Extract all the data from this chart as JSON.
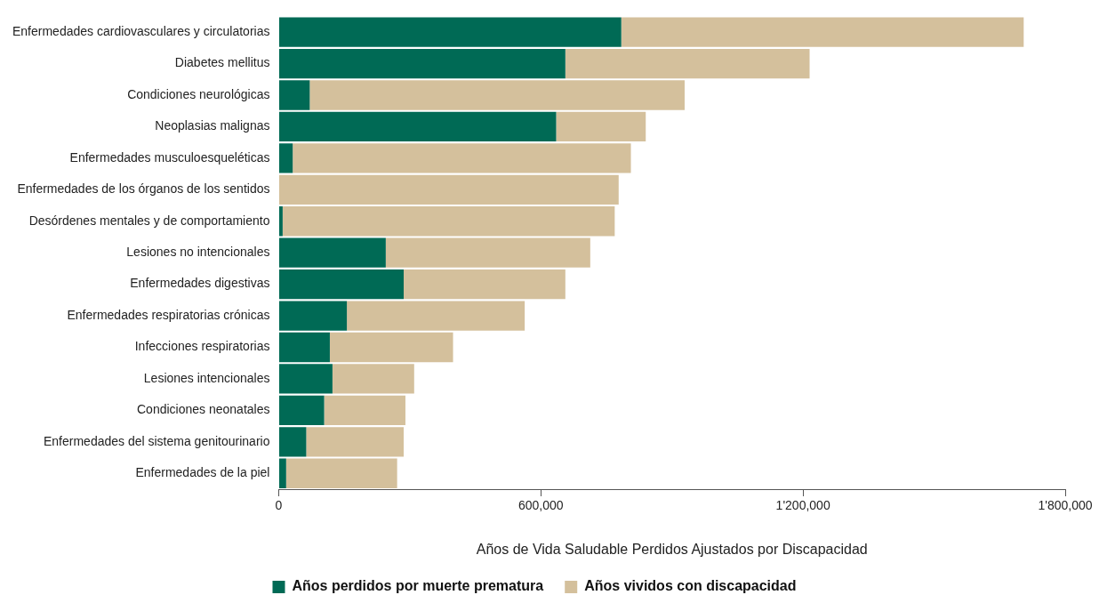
{
  "chart_data": {
    "type": "bar",
    "orientation": "horizontal",
    "stacked": true,
    "xlabel": "Años de Vida Saludable Perdidos Ajustados por Discapacidad",
    "categories": [
      "Enfermedades cardiovasculares y circulatorias",
      "Diabetes mellitus",
      "Condiciones neurológicas",
      "Neoplasias malignas",
      "Enfermedades musculoesqueléticas",
      "Enfermedades de los órganos de los sentidos",
      "Desórdenes mentales y de comportamiento",
      "Lesiones no intencionales",
      "Enfermedades digestivas",
      "Enfermedades respiratorias crónicas",
      "Infecciones respiratorias",
      "Lesiones intencionales",
      "Condiciones neonatales",
      "Enfermedades del sistema genitourinario",
      "Enfermedades de la piel"
    ],
    "series": [
      {
        "name": "Años perdidos por muerte prematura",
        "color": "#006a55",
        "values": [
          784000,
          656000,
          71000,
          635000,
          32000,
          0,
          9000,
          245000,
          286000,
          156000,
          117000,
          123000,
          104000,
          63000,
          17000
        ]
      },
      {
        "name": "Años vividos con discapacidad",
        "color": "#d4c09c",
        "values": [
          921000,
          559000,
          858000,
          205000,
          774000,
          778000,
          760000,
          468000,
          370000,
          407000,
          282000,
          187000,
          186000,
          223000,
          254000
        ]
      }
    ],
    "xlim": [
      0,
      1800000
    ],
    "xticks": [
      {
        "value": 0,
        "label": "0"
      },
      {
        "value": 600000,
        "label": "600,000"
      },
      {
        "value": 1200000,
        "label": "1'200,000"
      },
      {
        "value": 1800000,
        "label": "1'800,000"
      }
    ],
    "grid": false,
    "legend": "bottom"
  }
}
